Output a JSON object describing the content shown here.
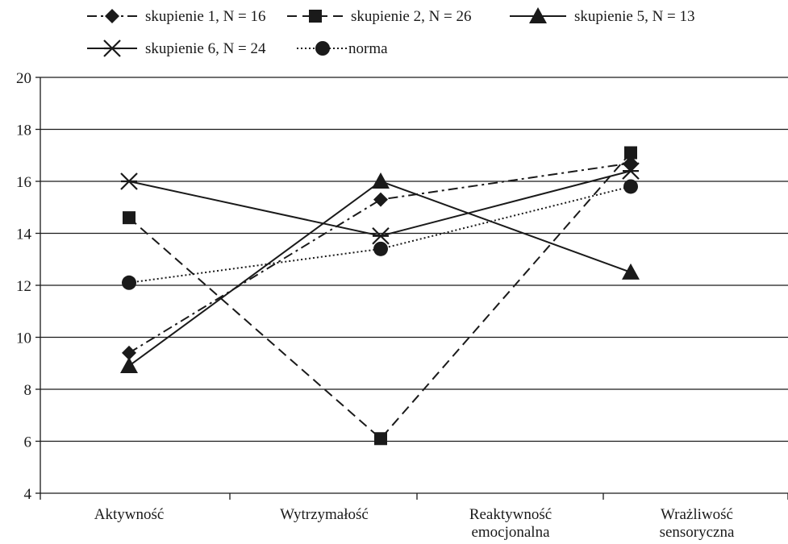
{
  "chart_data": {
    "type": "line",
    "categories": [
      [
        "Aktywność"
      ],
      [
        "Wytrzymałość"
      ],
      [
        "Reaktywność",
        "emocjonalna"
      ],
      [
        "Wrażliwość",
        "sensoryczna"
      ]
    ],
    "ylim": [
      4,
      20
    ],
    "yticks": [
      4,
      6,
      8,
      10,
      12,
      14,
      16,
      18,
      20
    ],
    "grid": true,
    "legend_position": "top",
    "series": [
      {
        "name": "skupienie 1, N = 16",
        "values": [
          9.4,
          15.3,
          16.7,
          16.6
        ],
        "marker": "diamond",
        "dash": "dash-dot",
        "color": "#1a1a1a"
      },
      {
        "name": "skupienie 2, N = 26",
        "values": [
          14.6,
          6.1,
          17.1,
          17.1
        ],
        "marker": "square",
        "dash": "dashed",
        "color": "#1a1a1a"
      },
      {
        "name": "skupienie 5, N = 13",
        "values": [
          8.9,
          16.0,
          12.5,
          12.5
        ],
        "marker": "triangle",
        "dash": "solid",
        "color": "#1a1a1a"
      },
      {
        "name": "skupienie 6, N = 24",
        "values": [
          16.0,
          13.9,
          16.4,
          16.4
        ],
        "marker": "asterisk",
        "dash": "solid",
        "color": "#1a1a1a"
      },
      {
        "name": "norma",
        "values": [
          12.1,
          13.4,
          15.8,
          15.8
        ],
        "marker": "circle",
        "dash": "dotted",
        "color": "#1a1a1a"
      }
    ]
  }
}
